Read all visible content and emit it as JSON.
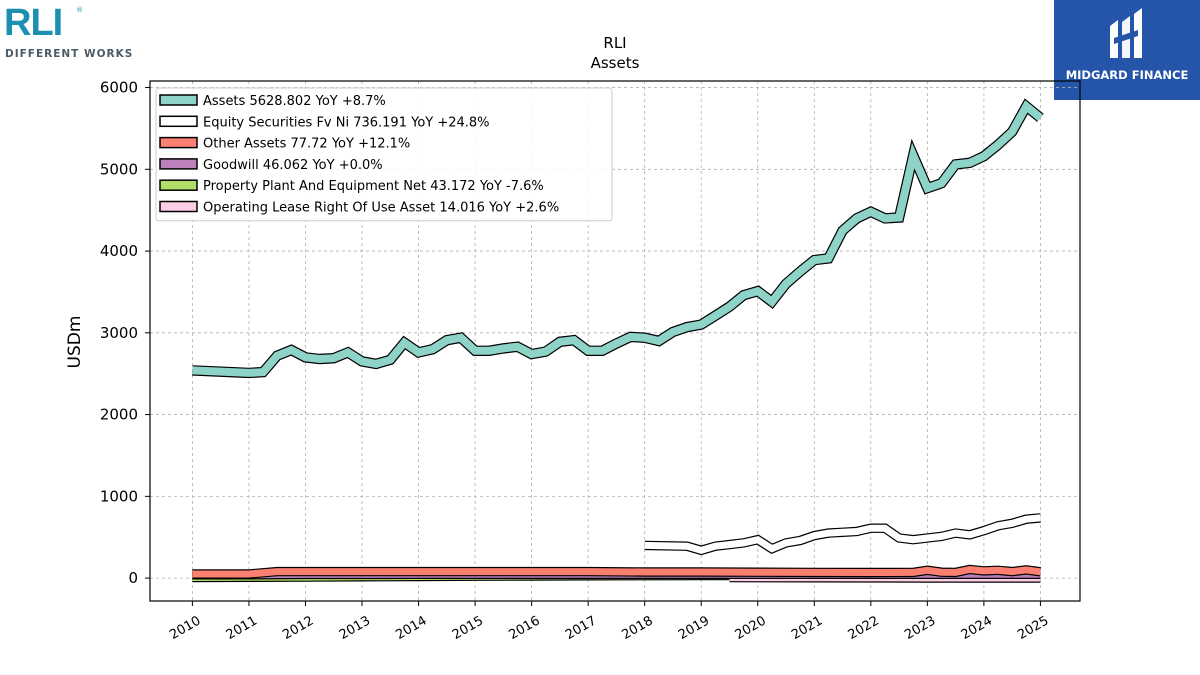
{
  "logos": {
    "left": {
      "mark": "RLI",
      "registered": "®",
      "tagline": "DIFFERENT WORKS"
    },
    "right": {
      "name": "MIDGARD FINANCE"
    }
  },
  "chart_data": {
    "type": "line",
    "title": "RLI",
    "subtitle": "Assets",
    "ylabel": "USDm",
    "ylim": [
      -280,
      6080
    ],
    "yticks": [
      0,
      1000,
      2000,
      3000,
      4000,
      5000,
      6000
    ],
    "xlim": [
      2009.25,
      2025.7
    ],
    "xticks": [
      "2010",
      "2011",
      "2012",
      "2013",
      "2014",
      "2015",
      "2016",
      "2017",
      "2018",
      "2019",
      "2020",
      "2021",
      "2022",
      "2023",
      "2024",
      "2025"
    ],
    "grid": true,
    "legend_position": "top-left",
    "series": [
      {
        "name": "Assets",
        "legend": "Assets  5628.802 YoY +8.7%",
        "color": "#8dd3c7",
        "x": [
          2010.0,
          2011.0,
          2011.25,
          2011.5,
          2011.75,
          2012.0,
          2012.25,
          2012.5,
          2012.75,
          2013.0,
          2013.25,
          2013.5,
          2013.75,
          2014.0,
          2014.25,
          2014.5,
          2014.75,
          2015.0,
          2015.25,
          2015.5,
          2015.75,
          2016.0,
          2016.25,
          2016.5,
          2016.75,
          2017.0,
          2017.25,
          2017.5,
          2017.75,
          2018.0,
          2018.25,
          2018.5,
          2018.75,
          2019.0,
          2019.25,
          2019.5,
          2019.75,
          2020.0,
          2020.25,
          2020.5,
          2020.75,
          2021.0,
          2021.25,
          2021.5,
          2021.75,
          2022.0,
          2022.25,
          2022.5,
          2022.75,
          2023.0,
          2023.25,
          2023.5,
          2023.75,
          2024.0,
          2024.25,
          2024.5,
          2024.75,
          2025.0
        ],
        "y": [
          2540,
          2510,
          2520,
          2720,
          2790,
          2700,
          2680,
          2690,
          2760,
          2650,
          2620,
          2670,
          2880,
          2760,
          2800,
          2910,
          2940,
          2780,
          2780,
          2810,
          2830,
          2740,
          2770,
          2890,
          2910,
          2780,
          2780,
          2870,
          2950,
          2940,
          2900,
          3010,
          3070,
          3100,
          3210,
          3320,
          3460,
          3510,
          3380,
          3600,
          3750,
          3890,
          3910,
          4250,
          4400,
          4480,
          4400,
          4410,
          5170,
          4770,
          4830,
          5060,
          5080,
          5160,
          5300,
          5460,
          5770,
          5628.8
        ]
      },
      {
        "name": "Equity Securities Fv Ni",
        "legend": "Equity Securities Fv Ni  736.191 YoY +24.8%",
        "color": "#ffffff",
        "x": [
          2018.0,
          2018.75,
          2019.0,
          2019.25,
          2019.5,
          2019.75,
          2020.0,
          2020.25,
          2020.5,
          2020.75,
          2021.0,
          2021.25,
          2021.5,
          2021.75,
          2022.0,
          2022.25,
          2022.5,
          2022.75,
          2023.0,
          2023.25,
          2023.5,
          2023.75,
          2024.0,
          2024.25,
          2024.5,
          2024.75,
          2025.0
        ],
        "y": [
          400,
          390,
          340,
          390,
          410,
          430,
          470,
          360,
          430,
          460,
          520,
          550,
          560,
          570,
          610,
          610,
          490,
          470,
          490,
          510,
          550,
          530,
          580,
          640,
          670,
          720,
          736.2
        ]
      },
      {
        "name": "Other Assets",
        "legend": "Other Assets  77.72 YoY +12.1%",
        "color": "#fb8072",
        "x": [
          2010.0,
          2011.0,
          2011.5,
          2012.0,
          2013.0,
          2014.0,
          2015.0,
          2016.0,
          2017.0,
          2018.0,
          2019.0,
          2020.0,
          2021.0,
          2022.0,
          2022.75,
          2023.0,
          2023.25,
          2023.5,
          2023.75,
          2024.0,
          2024.25,
          2024.5,
          2024.75,
          2025.0
        ],
        "y": [
          50,
          50,
          80,
          80,
          80,
          80,
          80,
          80,
          80,
          75,
          75,
          72,
          70,
          68,
          70,
          95,
          72,
          70,
          105,
          88,
          95,
          80,
          100,
          77.7
        ]
      },
      {
        "name": "Goodwill",
        "legend": "Goodwill  46.062 YoY +0.0%",
        "color": "#bc80bd",
        "x": [
          2010.0,
          2011.0,
          2012.0,
          2013.0,
          2014.0,
          2015.0,
          2016.0,
          2017.0,
          2018.0,
          2019.0,
          2020.0,
          2021.0,
          2022.0,
          2023.0,
          2024.0,
          2025.0
        ],
        "y": [
          40,
          40,
          45,
          45,
          46,
          46,
          46,
          46,
          46,
          46,
          46,
          46,
          46,
          46,
          46,
          46.1
        ]
      },
      {
        "name": "Property Plant And Equipment Net",
        "legend": "Property Plant And Equipment Net  43.172 YoY -7.6%",
        "color": "#b3de69",
        "x": [
          2010.0,
          2011.0,
          2012.0,
          2013.0,
          2014.0,
          2015.0,
          2016.0,
          2017.0,
          2018.0,
          2019.0,
          2019.5
        ],
        "y": [
          20,
          22,
          25,
          28,
          32,
          35,
          38,
          40,
          42,
          43,
          43.2
        ]
      },
      {
        "name": "Operating Lease Right Of Use Asset",
        "legend": "Operating Lease Right Of Use Asset  14.016 YoY +2.6%",
        "color": "#fccde5",
        "x": [
          2019.5,
          2020.0,
          2021.0,
          2022.0,
          2023.0,
          2024.0,
          2025.0
        ],
        "y": [
          18,
          17,
          16,
          15,
          14,
          13.7,
          14.0
        ]
      }
    ]
  }
}
